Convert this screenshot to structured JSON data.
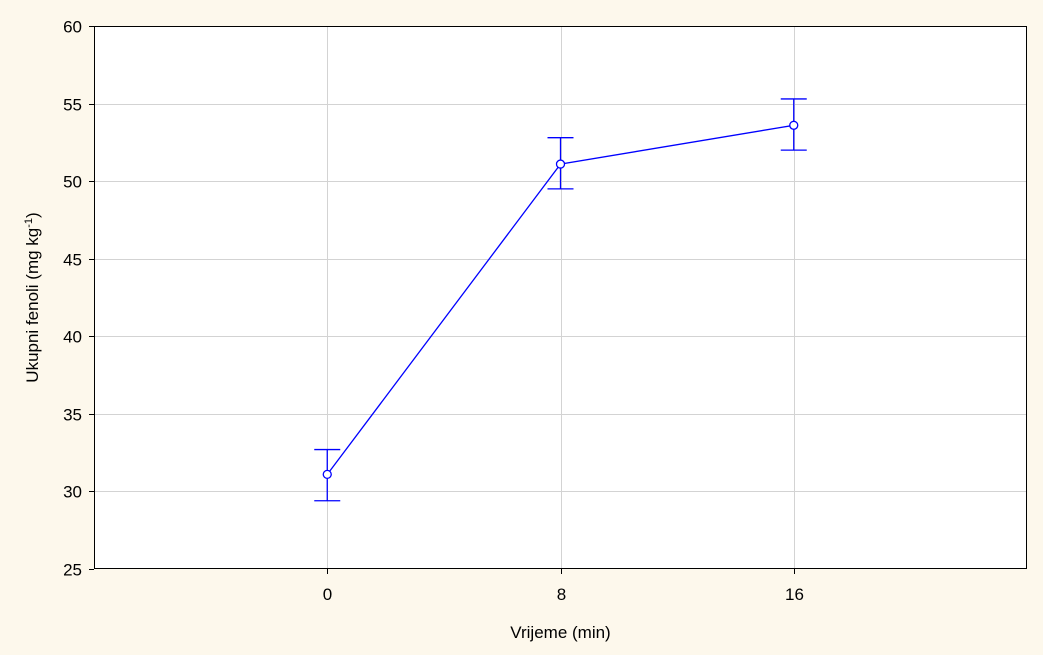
{
  "chart_data": {
    "type": "line",
    "title": "",
    "xlabel": "Vrijeme (min)",
    "ylabel_main": "Ukupni fenoli (mg kg",
    "ylabel_sup": "-1",
    "ylabel_tail": ")",
    "categories": [
      "0",
      "8",
      "16"
    ],
    "ylim": [
      25,
      60
    ],
    "yticks": [
      25,
      30,
      35,
      40,
      45,
      50,
      55,
      60
    ],
    "grid": true,
    "series": [
      {
        "values": [
          31.1,
          51.1,
          53.6
        ],
        "error_low": [
          29.4,
          49.5,
          52.0
        ],
        "error_high": [
          32.7,
          52.8,
          55.3
        ],
        "color": "#0000ff",
        "marker": "circle"
      }
    ]
  },
  "colors": {
    "background": "#fdf8ec",
    "plot_background": "#ffffff",
    "grid": "#d3d3d3",
    "series": "#0000ff"
  }
}
